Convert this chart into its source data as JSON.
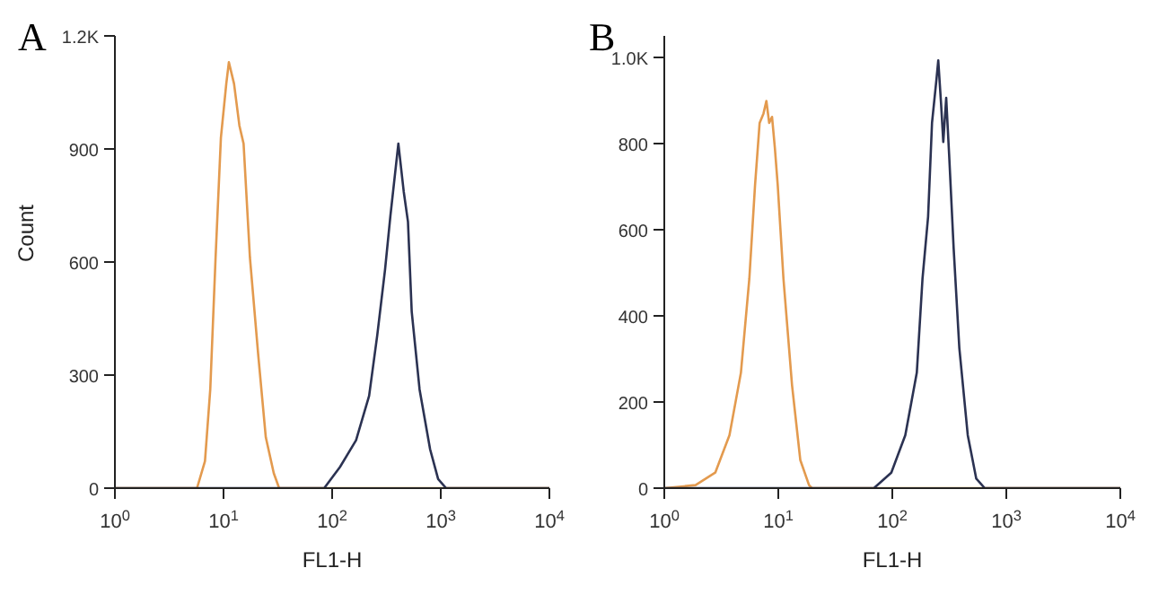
{
  "chart_data": [
    {
      "type": "line",
      "title": "A",
      "xlabel": "FL1-H",
      "ylabel": "Count",
      "log": "x",
      "xlim": [
        1,
        10000
      ],
      "xticks": [
        {
          "value": 1,
          "label": "10$^{0}$"
        },
        {
          "value": 10,
          "label": "10$^{1}$"
        },
        {
          "value": 100,
          "label": "10$^{2}$"
        },
        {
          "value": 1000,
          "label": "10$^{3}$"
        },
        {
          "value": 10000,
          "label": "10$^{4}$"
        }
      ],
      "ylim": [
        0,
        1200
      ],
      "yticks": [
        0,
        300,
        600,
        900,
        {
          "value": 1200,
          "label": "1.2K"
        }
      ],
      "grid": false,
      "series": [
        {
          "color": "#e39a4e",
          "x": [
            1,
            5.7,
            6.75,
            7.55,
            8.45,
            9.46,
            10.6,
            11.2,
            12.5,
            14.0,
            15.3,
            17.5,
            20.8,
            24.5,
            29,
            32.5,
            10000
          ],
          "values": [
            0,
            0,
            72,
            262,
            612,
            930,
            1073,
            1130,
            1073,
            962,
            914,
            612,
            358,
            135,
            40,
            0,
            0
          ]
        },
        {
          "color": "#2b3252",
          "x": [
            1,
            84.5,
            118,
            166,
            219,
            260,
            307,
            344,
            385,
            407,
            456,
            499,
            540,
            638,
            798,
            946,
            1120,
            10000
          ],
          "values": [
            0,
            0,
            56,
            127,
            245,
            405,
            580,
            723,
            851,
            914,
            787,
            707,
            469,
            262,
            103,
            24,
            0,
            0
          ]
        }
      ]
    },
    {
      "type": "line",
      "title": "B",
      "xlabel": "FL1-H",
      "log": "x",
      "xlim": [
        1,
        10000
      ],
      "xticks": [
        {
          "value": 1,
          "label": "10$^{0}$"
        },
        {
          "value": 10,
          "label": "10$^{1}$"
        },
        {
          "value": 100,
          "label": "10$^{2}$"
        },
        {
          "value": 1000,
          "label": "10$^{3}$"
        },
        {
          "value": 10000,
          "label": "10$^{4}$"
        }
      ],
      "ylim": [
        0,
        1050
      ],
      "yticks": [
        0,
        200,
        400,
        600,
        800,
        {
          "value": 1000,
          "label": "1.0K"
        }
      ],
      "grid": false,
      "series": [
        {
          "color": "#e39a4e",
          "x": [
            1,
            1.88,
            2.8,
            3.73,
            4.7,
            5.57,
            6.25,
            6.86,
            7.42,
            7.86,
            8.32,
            8.81,
            9.33,
            9.89,
            11.1,
            13.2,
            15.6,
            18.6,
            19.7,
            10000
          ],
          "values": [
            0,
            7,
            36,
            123,
            268,
            486,
            703,
            848,
            870,
            899,
            848,
            862,
            790,
            703,
            486,
            239,
            65,
            7,
            0,
            0
          ]
        },
        {
          "color": "#2b3252",
          "x": [
            1,
            69,
            98,
            130,
            164,
            184,
            206,
            223,
            244,
            253,
            268,
            280,
            297,
            315,
            345,
            387,
            459,
            545,
            647,
            10000
          ],
          "values": [
            0,
            0,
            36,
            123,
            268,
            486,
            630,
            848,
            949,
            993,
            891,
            804,
            906,
            775,
            558,
            326,
            123,
            22,
            0,
            0
          ]
        }
      ]
    }
  ]
}
